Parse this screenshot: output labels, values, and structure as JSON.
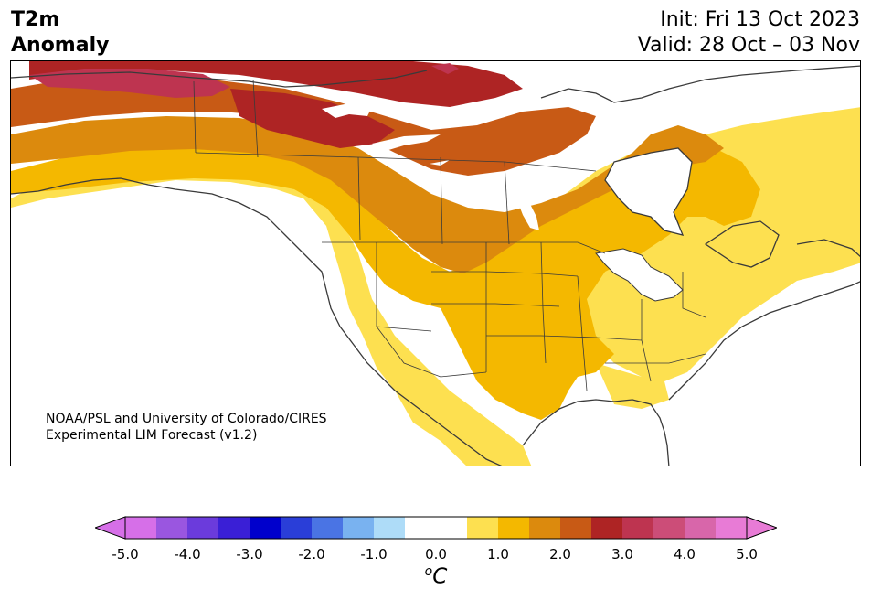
{
  "header": {
    "title_line1": "T2m",
    "title_line2": "Anomaly",
    "init": "Init: Fri 13 Oct 2023",
    "valid": "Valid: 28 Oct – 03 Nov"
  },
  "credit": {
    "line1": "NOAA/PSL and University of Colorado/CIRES",
    "line2": "Experimental LIM Forecast (v1.2)"
  },
  "colorbar": {
    "unit_base": "C",
    "unit_sup": "o",
    "ticks": [
      "-5.0",
      "-4.0",
      "-3.0",
      "-2.0",
      "-1.0",
      "0.0",
      "1.0",
      "2.0",
      "3.0",
      "4.0",
      "5.0"
    ],
    "colors": [
      "#d66fe8",
      "#9a56e0",
      "#6b3bdc",
      "#3a1fd6",
      "#0000cc",
      "#2a3ed8",
      "#4a74e4",
      "#79b2f0",
      "#aedcf8",
      "#ffffff",
      "#ffffff",
      "#fde050",
      "#f4b800",
      "#dc8a0d",
      "#c85a15",
      "#ae2424",
      "#be3450",
      "#cc4d78",
      "#d866aa",
      "#e87bd6"
    ],
    "under_color": "#d66fe8",
    "over_color": "#e87bd6"
  },
  "map": {
    "region": "North America",
    "palette": {
      "white": "#ffffff",
      "c1": "#fde050",
      "c1b": "#f4b800",
      "c2": "#dc8a0d",
      "c2b": "#c85a15",
      "c3": "#ae2424",
      "c3b": "#be3450",
      "land_outline": "#3a3a3a"
    }
  }
}
